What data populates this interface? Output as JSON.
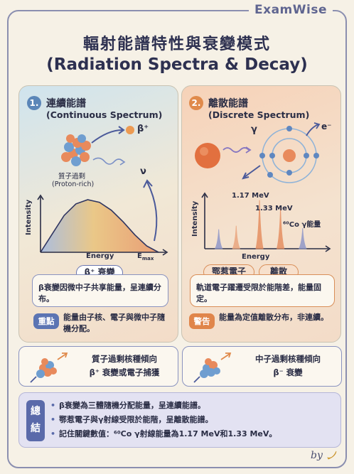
{
  "brand": "ExamWise",
  "title_zh": "輻射能譜特性與衰變模式",
  "title_en": "(Radiation Spectra & Decay)",
  "left_panel": {
    "number": "1.",
    "title": "連續能譜",
    "subtitle": "(Continuous Spectrum)",
    "proton_rich_zh": "質子過剩",
    "proton_rich_en": "(Proton-rich)",
    "beta_plus": "β⁺",
    "neutrino": "ν",
    "chart_ylabel": "Intensity",
    "chart_xlabel": "Energy",
    "chart_emax": "E",
    "chart_emax_sub": "max",
    "pill": "β⁺ 衰變",
    "description": "β衰變因微中子共享能量，呈連續分布。",
    "tag": "重點",
    "tag_text": "能量由子核、電子與微中子隨機分配。"
  },
  "right_panel": {
    "number": "2.",
    "title": "離散能譜",
    "subtitle": "(Discrete Spectrum)",
    "gamma": "γ",
    "electron": "e⁻",
    "chart_ylabel": "Intensity",
    "chart_xlabel": "Energy",
    "peak1_label": "1.17 MeV",
    "peak2_label": "1.33 MeV",
    "co_label": "⁶⁰Co γ能量",
    "pill1": "鄂惹電子",
    "pill2": "離散",
    "description": "軌道電子躍遷受限於能階差，能量固定。",
    "tag": "警告",
    "tag_text": "能量為定值離散分布，非連續。"
  },
  "bottom_left_card": "質子過剩核種傾向\nβ⁺ 衰變或電子捕獲",
  "bottom_right_card": "中子過剩核種傾向\nβ⁻ 衰變",
  "summary": {
    "badge": "總結",
    "items": [
      "β衰變為三體隨機分配能量，呈連續能譜。",
      "鄂惹電子與γ射線受限於能階，呈離散能譜。",
      "記住關鍵數值：⁶⁰Co γ射線能量為1.17 MeV和1.33 MeV。"
    ]
  },
  "byline": "by",
  "chart_data": [
    {
      "type": "area",
      "xlabel": "Energy",
      "ylabel": "Intensity",
      "x": [
        0,
        0.1,
        0.2,
        0.3,
        0.4,
        0.5,
        0.6,
        0.7,
        0.8,
        0.9,
        1.0
      ],
      "series": [
        {
          "values": [
            0,
            0.35,
            0.7,
            0.92,
            1.0,
            0.95,
            0.8,
            0.58,
            0.33,
            0.12,
            0
          ]
        }
      ],
      "annotations": [
        "Emax"
      ]
    },
    {
      "type": "line",
      "xlabel": "Energy",
      "ylabel": "Intensity",
      "peaks": [
        {
          "label": "",
          "position": 0.12,
          "height": 0.38,
          "color": "#8a93c8"
        },
        {
          "label": "",
          "position": 0.27,
          "height": 0.45,
          "color": "#e9a27a"
        },
        {
          "label": "1.17 MeV",
          "position": 0.47,
          "height": 0.95,
          "color": "#e58a5a"
        },
        {
          "label": "1.33 MeV",
          "position": 0.65,
          "height": 0.8,
          "color": "#e58a5a"
        },
        {
          "label": "",
          "position": 0.84,
          "height": 0.4,
          "color": "#8a93c8"
        }
      ]
    }
  ],
  "colors": {
    "accent_blue": "#5b74b3",
    "accent_orange": "#e0854a",
    "background": "#f6f1e6"
  }
}
